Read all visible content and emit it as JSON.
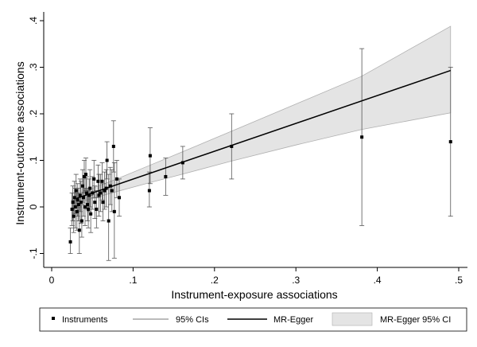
{
  "chart_data": {
    "type": "scatter",
    "xlabel": "Instrument-exposure associations",
    "ylabel": "Instrument-outcome associations",
    "xlim": [
      -0.01,
      0.51
    ],
    "ylim": [
      -0.12,
      0.42
    ],
    "xticks": [
      0,
      0.1,
      0.2,
      0.3,
      0.4,
      0.5
    ],
    "xtick_labels": [
      "0",
      ".1",
      ".2",
      ".3",
      ".4",
      ".5"
    ],
    "yticks": [
      -0.1,
      0,
      0.1,
      0.2,
      0.3,
      0.4
    ],
    "ytick_labels": [
      "-.1",
      "0",
      ".1",
      ".2",
      ".3",
      ".4"
    ],
    "grid": false,
    "legend_position": "bottom",
    "legend": [
      {
        "label": "Instruments",
        "kind": "marker"
      },
      {
        "label": "95% CIs",
        "kind": "thin-line"
      },
      {
        "label": "MR-Egger",
        "kind": "line"
      },
      {
        "label": "MR-Egger 95% CI",
        "kind": "band"
      }
    ],
    "colors": {
      "points": "#000000",
      "ci": "#555555",
      "line": "#000000",
      "band": "#e4e4e4",
      "band_edge": "#b0b0b0"
    },
    "egger_line": {
      "x": [
        0.03,
        0.49
      ],
      "y": [
        0.018,
        0.293
      ]
    },
    "egger_band": {
      "x": [
        0.03,
        0.05,
        0.08,
        0.12,
        0.16,
        0.22,
        0.3,
        0.38,
        0.49
      ],
      "lower": [
        0.008,
        0.018,
        0.033,
        0.052,
        0.07,
        0.098,
        0.133,
        0.166,
        0.202
      ],
      "upper": [
        0.027,
        0.04,
        0.06,
        0.089,
        0.118,
        0.162,
        0.221,
        0.28,
        0.388
      ]
    },
    "points": [
      {
        "x": 0.023,
        "y": -0.075,
        "lo": -0.1,
        "hi": -0.045
      },
      {
        "x": 0.025,
        "y": -0.005,
        "lo": -0.04,
        "hi": 0.03
      },
      {
        "x": 0.026,
        "y": 0.01,
        "lo": -0.03,
        "hi": 0.045
      },
      {
        "x": 0.027,
        "y": -0.02,
        "lo": -0.055,
        "hi": 0.015
      },
      {
        "x": 0.028,
        "y": 0.02,
        "lo": -0.015,
        "hi": 0.055
      },
      {
        "x": 0.029,
        "y": 0.0,
        "lo": -0.045,
        "hi": 0.04
      },
      {
        "x": 0.03,
        "y": 0.035,
        "lo": 0.0,
        "hi": 0.07
      },
      {
        "x": 0.031,
        "y": -0.01,
        "lo": -0.05,
        "hi": 0.03
      },
      {
        "x": 0.032,
        "y": 0.015,
        "lo": -0.02,
        "hi": 0.05
      },
      {
        "x": 0.033,
        "y": 0.005,
        "lo": -0.03,
        "hi": 0.04
      },
      {
        "x": 0.034,
        "y": -0.05,
        "lo": -0.1,
        "hi": 0.0
      },
      {
        "x": 0.035,
        "y": 0.025,
        "lo": -0.01,
        "hi": 0.06
      },
      {
        "x": 0.036,
        "y": 0.01,
        "lo": -0.035,
        "hi": 0.055
      },
      {
        "x": 0.037,
        "y": -0.03,
        "lo": -0.065,
        "hi": 0.005
      },
      {
        "x": 0.038,
        "y": 0.045,
        "lo": 0.01,
        "hi": 0.08
      },
      {
        "x": 0.039,
        "y": 0.02,
        "lo": -0.02,
        "hi": 0.06
      },
      {
        "x": 0.04,
        "y": 0.065,
        "lo": 0.03,
        "hi": 0.1
      },
      {
        "x": 0.041,
        "y": 0.0,
        "lo": -0.04,
        "hi": 0.04
      },
      {
        "x": 0.042,
        "y": 0.07,
        "lo": 0.035,
        "hi": 0.105
      },
      {
        "x": 0.043,
        "y": 0.03,
        "lo": -0.005,
        "hi": 0.065
      },
      {
        "x": 0.044,
        "y": 0.005,
        "lo": -0.03,
        "hi": 0.04
      },
      {
        "x": 0.045,
        "y": -0.005,
        "lo": -0.045,
        "hi": 0.035
      },
      {
        "x": 0.046,
        "y": 0.025,
        "lo": -0.01,
        "hi": 0.06
      },
      {
        "x": 0.047,
        "y": 0.04,
        "lo": 0.0,
        "hi": 0.08
      },
      {
        "x": 0.048,
        "y": -0.015,
        "lo": -0.055,
        "hi": 0.025
      },
      {
        "x": 0.05,
        "y": 0.03,
        "lo": -0.005,
        "hi": 0.065
      },
      {
        "x": 0.052,
        "y": 0.06,
        "lo": 0.02,
        "hi": 0.1
      },
      {
        "x": 0.053,
        "y": 0.01,
        "lo": -0.025,
        "hi": 0.045
      },
      {
        "x": 0.055,
        "y": -0.005,
        "lo": -0.045,
        "hi": 0.035
      },
      {
        "x": 0.057,
        "y": 0.055,
        "lo": 0.02,
        "hi": 0.09
      },
      {
        "x": 0.058,
        "y": 0.025,
        "lo": -0.02,
        "hi": 0.07
      },
      {
        "x": 0.06,
        "y": 0.03,
        "lo": -0.01,
        "hi": 0.07
      },
      {
        "x": 0.062,
        "y": 0.055,
        "lo": 0.015,
        "hi": 0.095
      },
      {
        "x": 0.063,
        "y": 0.01,
        "lo": -0.03,
        "hi": 0.05
      },
      {
        "x": 0.065,
        "y": 0.035,
        "lo": -0.005,
        "hi": 0.075
      },
      {
        "x": 0.067,
        "y": 0.04,
        "lo": 0.0,
        "hi": 0.08
      },
      {
        "x": 0.068,
        "y": 0.1,
        "lo": 0.06,
        "hi": 0.14
      },
      {
        "x": 0.07,
        "y": -0.03,
        "lo": -0.115,
        "hi": 0.07
      },
      {
        "x": 0.072,
        "y": 0.045,
        "lo": 0.005,
        "hi": 0.085
      },
      {
        "x": 0.074,
        "y": 0.035,
        "lo": -0.01,
        "hi": 0.08
      },
      {
        "x": 0.076,
        "y": 0.13,
        "lo": 0.075,
        "hi": 0.185
      },
      {
        "x": 0.077,
        "y": -0.01,
        "lo": -0.11,
        "hi": 0.095
      },
      {
        "x": 0.08,
        "y": 0.06,
        "lo": 0.02,
        "hi": 0.1
      },
      {
        "x": 0.083,
        "y": 0.02,
        "lo": -0.02,
        "hi": 0.06
      },
      {
        "x": 0.12,
        "y": 0.035,
        "lo": 0.0,
        "hi": 0.075
      },
      {
        "x": 0.121,
        "y": 0.11,
        "lo": 0.05,
        "hi": 0.17
      },
      {
        "x": 0.14,
        "y": 0.065,
        "lo": 0.025,
        "hi": 0.105
      },
      {
        "x": 0.161,
        "y": 0.095,
        "lo": 0.06,
        "hi": 0.13
      },
      {
        "x": 0.221,
        "y": 0.13,
        "lo": 0.06,
        "hi": 0.2
      },
      {
        "x": 0.381,
        "y": 0.15,
        "lo": -0.04,
        "hi": 0.34
      },
      {
        "x": 0.49,
        "y": 0.14,
        "lo": -0.02,
        "hi": 0.3
      }
    ]
  }
}
